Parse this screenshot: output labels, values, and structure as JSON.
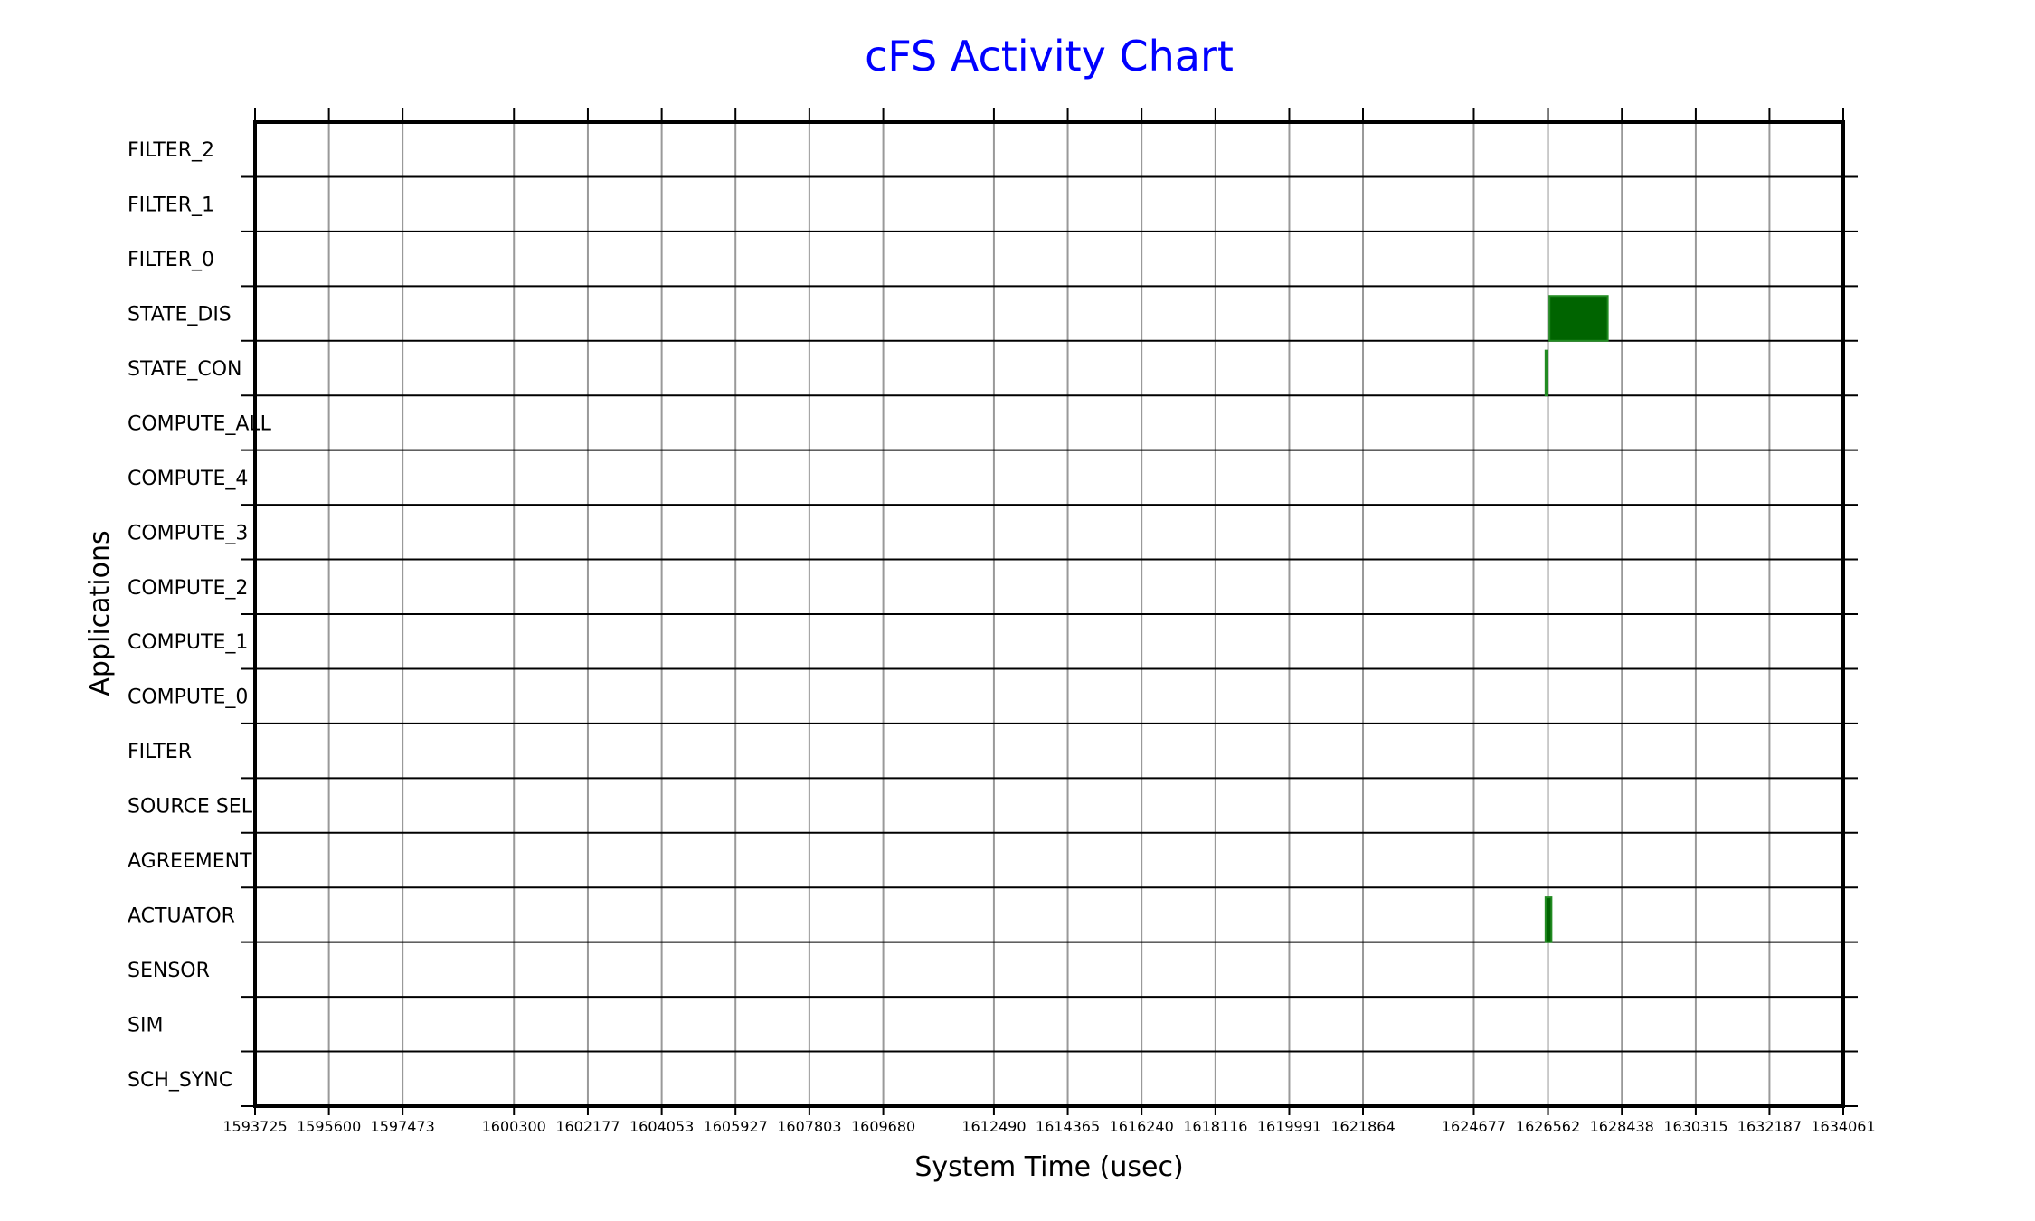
{
  "chart_data": {
    "type": "gantt",
    "title": "cFS Activity Chart",
    "xlabel": "System Time (usec)",
    "ylabel": "Applications",
    "xlim": [
      1593725,
      1634061
    ],
    "x_ticks": [
      1593725,
      1595600,
      1597473,
      1600300,
      1602177,
      1604053,
      1605927,
      1607803,
      1609680,
      1612490,
      1614365,
      1616240,
      1618116,
      1619991,
      1621864,
      1624677,
      1626562,
      1628438,
      1630315,
      1632187,
      1634061
    ],
    "grid": true,
    "categories": [
      "FILTER_2",
      "FILTER_1",
      "FILTER_0",
      "STATE_DIS",
      "STATE_CON",
      "COMPUTE_ALL",
      "COMPUTE_4",
      "COMPUTE_3",
      "COMPUTE_2",
      "COMPUTE_1",
      "COMPUTE_0",
      "FILTER",
      "SOURCE SEL",
      "AGREEMENT",
      "ACTUATOR",
      "SENSOR",
      "SIM",
      "SCH_SYNC"
    ],
    "activities": [
      {
        "app": "STATE_DIS",
        "start": 1626600,
        "end": 1628080
      },
      {
        "app": "STATE_CON",
        "start": 1626500,
        "end": 1626540
      },
      {
        "app": "ACTUATOR",
        "start": 1626500,
        "end": 1626650
      }
    ],
    "colors": {
      "bar_fill": "#006400",
      "bar_edge": "#228b22",
      "title": "#0000ff",
      "grid": "#999999"
    }
  }
}
